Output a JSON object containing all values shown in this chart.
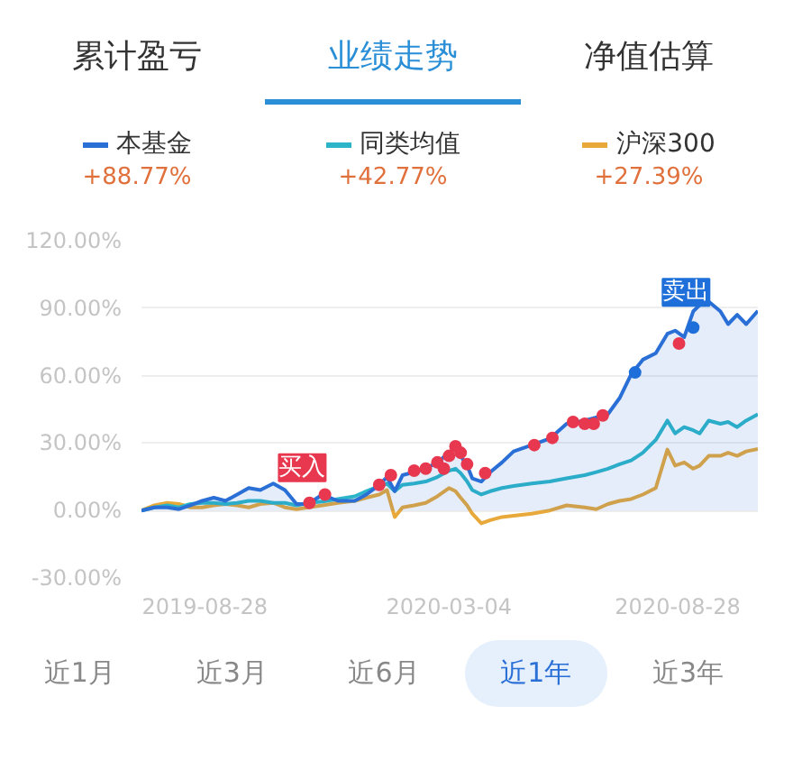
{
  "chart_data": {
    "type": "line",
    "xlim": [
      "2019-07-10",
      "2020-10-29"
    ],
    "xticks": [
      "2019-08-28",
      "2020-03-04",
      "2020-08-28"
    ],
    "ylim": [
      -30,
      120
    ],
    "yticks": [
      {
        "value": -30,
        "label": "-30.00%"
      },
      {
        "value": 0,
        "label": "0.00%"
      },
      {
        "value": 30,
        "label": "30.00%"
      },
      {
        "value": 60,
        "label": "60.00%"
      },
      {
        "value": 90,
        "label": "90.00%"
      },
      {
        "value": 120,
        "label": "120.00%"
      }
    ],
    "grid": "y",
    "legend": "top",
    "x": [
      "2019-07-10",
      "2019-07-20",
      "2019-07-30",
      "2019-08-08",
      "2019-08-17",
      "2019-08-26",
      "2019-09-04",
      "2019-09-13",
      "2019-09-22",
      "2019-10-01",
      "2019-10-10",
      "2019-10-20",
      "2019-10-29",
      "2019-11-07",
      "2019-11-16",
      "2019-11-27",
      "2019-12-09",
      "2019-12-22",
      "2019-12-31",
      "2020-01-10",
      "2020-01-16",
      "2020-01-22",
      "2020-01-28",
      "2020-02-06",
      "2020-02-15",
      "2020-02-24",
      "2020-03-04",
      "2020-03-09",
      "2020-03-13",
      "2020-03-18",
      "2020-03-22",
      "2020-03-29",
      "2020-04-05",
      "2020-04-14",
      "2020-04-23",
      "2020-05-07",
      "2020-05-21",
      "2020-06-03",
      "2020-06-17",
      "2020-06-26",
      "2020-07-05",
      "2020-07-14",
      "2020-07-23",
      "2020-08-01",
      "2020-08-11",
      "2020-08-20",
      "2020-08-26",
      "2020-09-02",
      "2020-09-09",
      "2020-09-14",
      "2020-09-21",
      "2020-09-30",
      "2020-10-06",
      "2020-10-13",
      "2020-10-20",
      "2020-10-29"
    ],
    "series": [
      {
        "name": "本基金",
        "type": "area",
        "color": "#2a6fd6",
        "values": [
          0,
          1.4,
          1.4,
          0.6,
          2.3,
          4.3,
          5.7,
          4.3,
          7.1,
          10,
          9.1,
          12,
          9.1,
          2.9,
          2.9,
          7.1,
          4.3,
          4.3,
          7.1,
          11.4,
          14.9,
          8.6,
          15.7,
          17.1,
          18.6,
          21.4,
          25.7,
          28,
          24.3,
          20,
          14.3,
          12.9,
          17.1,
          21.4,
          26.3,
          29.1,
          32,
          38.6,
          40,
          41.4,
          42.9,
          50,
          60.6,
          67.1,
          70,
          78.6,
          80,
          77.1,
          88.6,
          91.4,
          92.9,
          88.6,
          82.9,
          87.1,
          82.9,
          88.8
        ]
      },
      {
        "name": "同类均值",
        "color": "#2cb5c8",
        "values": [
          0,
          1.4,
          2.3,
          1.4,
          2.9,
          3.4,
          3.4,
          2.9,
          3.4,
          4.3,
          4.3,
          3.4,
          3.4,
          2.3,
          3.4,
          4,
          5.1,
          6.3,
          8.6,
          10.9,
          12,
          8.6,
          11.4,
          12,
          12.9,
          14.9,
          17.7,
          18.6,
          16.6,
          12.9,
          9.1,
          7.1,
          8.6,
          10,
          10.9,
          12,
          12.9,
          14.3,
          15.7,
          17.1,
          18.6,
          20.6,
          22.3,
          25.7,
          31.4,
          40,
          34.3,
          37.1,
          35.7,
          34.3,
          40,
          38.6,
          39.4,
          37.1,
          40,
          42.8
        ]
      },
      {
        "name": "沪深300",
        "color": "#e8a93a",
        "values": [
          0,
          2.3,
          3.4,
          2.9,
          1.4,
          1.4,
          2.3,
          2.9,
          2.3,
          1.4,
          2.9,
          3.4,
          1.4,
          0.6,
          1.4,
          2.3,
          3.4,
          4.3,
          5.7,
          7.1,
          9.1,
          -2.9,
          1.4,
          2.3,
          3.4,
          6.3,
          10,
          8.6,
          5.7,
          2.3,
          -1.4,
          -5.7,
          -4.3,
          -2.9,
          -2.3,
          -1.4,
          0,
          2.3,
          1.4,
          0.6,
          2.9,
          4.3,
          5.1,
          7.1,
          10,
          27.1,
          20,
          21.4,
          18.6,
          20,
          24.3,
          24.3,
          25.7,
          24.3,
          26.3,
          27.4
        ]
      },
      {
        "type": "scatter",
        "marker": "circle",
        "color": "#e8384f",
        "x": [
          "2019-11-17",
          "2019-11-29",
          "2020-01-10",
          "2020-01-19",
          "2020-02-06",
          "2020-02-15",
          "2020-02-24",
          "2020-02-29",
          "2020-03-04",
          "2020-03-09",
          "2020-03-13",
          "2020-03-18",
          "2020-04-01",
          "2020-05-09",
          "2020-05-23",
          "2020-06-08",
          "2020-06-17",
          "2020-06-24",
          "2020-07-01",
          "2020-08-29"
        ],
        "values": [
          3.4,
          7.1,
          11.4,
          15.7,
          17.7,
          18.6,
          21.4,
          18.6,
          24.3,
          28.6,
          25.7,
          20.6,
          16.6,
          29.1,
          32.3,
          39.4,
          38.6,
          38.6,
          42.3,
          74.3
        ]
      },
      {
        "type": "scatter",
        "marker": "circle",
        "color": "#1e6fd9",
        "x": [
          "2020-07-26",
          "2020-09-09"
        ],
        "values": [
          61.4,
          81.4
        ]
      }
    ],
    "annotations": [
      "累计盈亏",
      "业绩走势",
      "净值估算",
      "+88.77%",
      "+42.77%",
      "+27.39%",
      "近1月",
      "近3月",
      "近6月",
      "近1年",
      "近3年",
      {
        "text": "买入",
        "x": "2019-11-17",
        "y": 3.4
      },
      {
        "text": "卖出",
        "x": "2020-09-09",
        "y": 81.4
      }
    ]
  }
}
